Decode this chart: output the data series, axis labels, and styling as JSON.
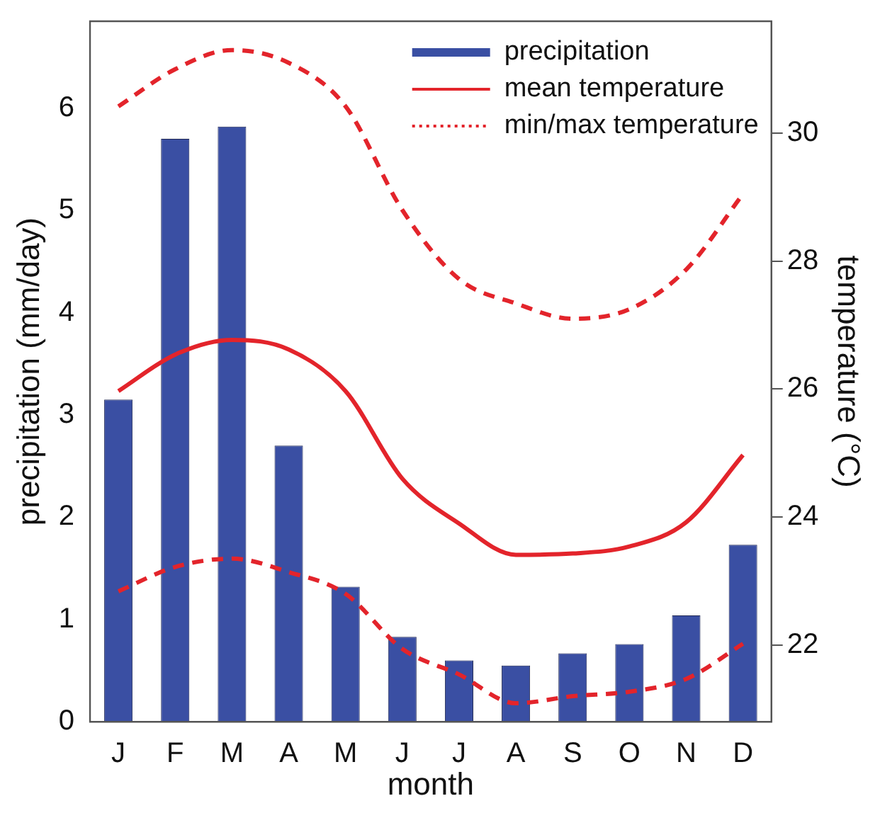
{
  "chart_data": {
    "type": "bar",
    "xlabel": "month",
    "ylabel": "precipitation (mm/day)",
    "y2label": "temperature (°C)",
    "categories": [
      "J",
      "F",
      "M",
      "A",
      "M",
      "J",
      "J",
      "A",
      "S",
      "O",
      "N",
      "D"
    ],
    "series": [
      {
        "name": "precipitation",
        "color": "#3a4fa3",
        "values": [
          3.15,
          5.7,
          5.82,
          2.7,
          1.32,
          0.83,
          0.6,
          0.55,
          0.67,
          0.76,
          1.04,
          1.73
        ]
      },
      {
        "name": "mean temperature",
        "type": "line",
        "axis": "y2",
        "color": "#e3242b",
        "line_style": "solid",
        "values": [
          25.97,
          26.54,
          26.77,
          26.62,
          25.97,
          24.6,
          23.9,
          23.41,
          23.43,
          23.54,
          23.92,
          24.97
        ]
      },
      {
        "name": "min/max temperature",
        "type": "line",
        "axis": "y2",
        "color": "#e3242b",
        "line_style": "dashed",
        "values": [
          30.42,
          31.0,
          31.3,
          31.1,
          30.42,
          28.8,
          27.72,
          27.34,
          27.1,
          27.25,
          27.87,
          29.05
        ]
      },
      {
        "type": "line",
        "axis": "y2",
        "color": "#e3242b",
        "line_style": "dashed",
        "values": [
          22.84,
          23.22,
          23.35,
          23.14,
          22.8,
          21.94,
          21.54,
          21.09,
          21.2,
          21.27,
          21.47,
          22.02
        ]
      }
    ],
    "ylim": [
      0,
      6.85
    ],
    "yticks": [
      0,
      1,
      2,
      3,
      4,
      5,
      6
    ],
    "y2lim": [
      20.8,
      31.75
    ],
    "y2ticks": [
      22,
      24,
      26,
      28,
      30
    ],
    "grid": false,
    "legend": "top right",
    "marker": "none"
  }
}
